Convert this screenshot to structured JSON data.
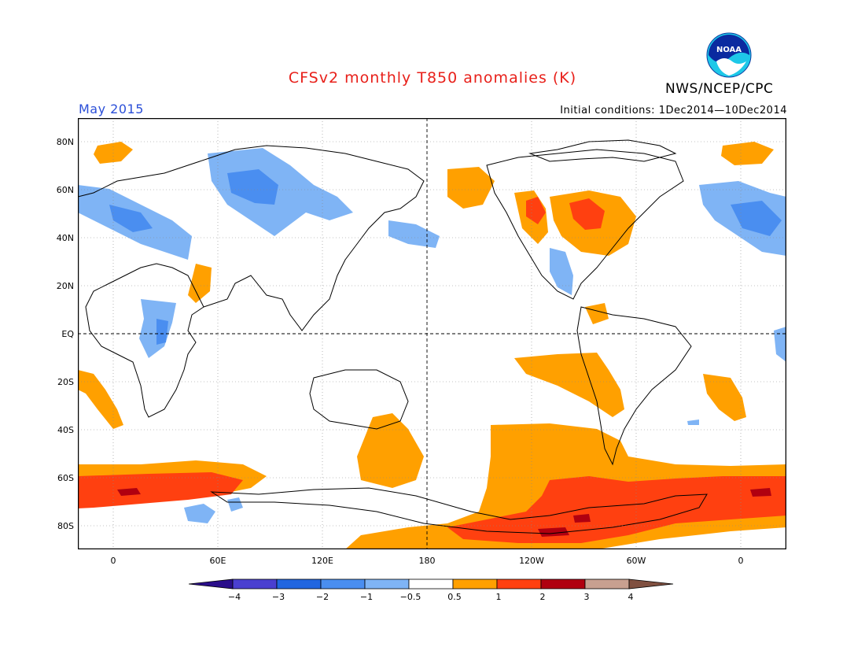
{
  "header": {
    "title": "CFSv2 monthly T850 anomalies (K)",
    "agency": "NWS/NCEP/CPC",
    "period": "May 2015",
    "initial_conditions": "Initial conditions: 1Dec2014—10Dec2014",
    "logo_text": "NOAA"
  },
  "map": {
    "lat_labels": [
      "80N",
      "60N",
      "40N",
      "20N",
      "EQ",
      "20S",
      "40S",
      "60S",
      "80S"
    ],
    "lon_labels": [
      "0",
      "60E",
      "120E",
      "180",
      "120W",
      "60W",
      "0"
    ]
  },
  "colorbar": {
    "labels": [
      "−4",
      "−3",
      "−2",
      "−1",
      "−0.5",
      "0.5",
      "1",
      "2",
      "3",
      "4"
    ],
    "colors": [
      "#2a0e8a",
      "#4a3fd0",
      "#2166e0",
      "#4a8ef0",
      "#7fb4f5",
      "#ffffff",
      "#ffa000",
      "#ff4010",
      "#b00010",
      "#c8a090",
      "#805040"
    ]
  },
  "anomaly_colors": {
    "cold_light": "#7fb4f5",
    "cold_mid": "#4a8ef0",
    "warm_light": "#ffa000",
    "warm_mid": "#ff4010",
    "warm_high": "#b00010"
  }
}
